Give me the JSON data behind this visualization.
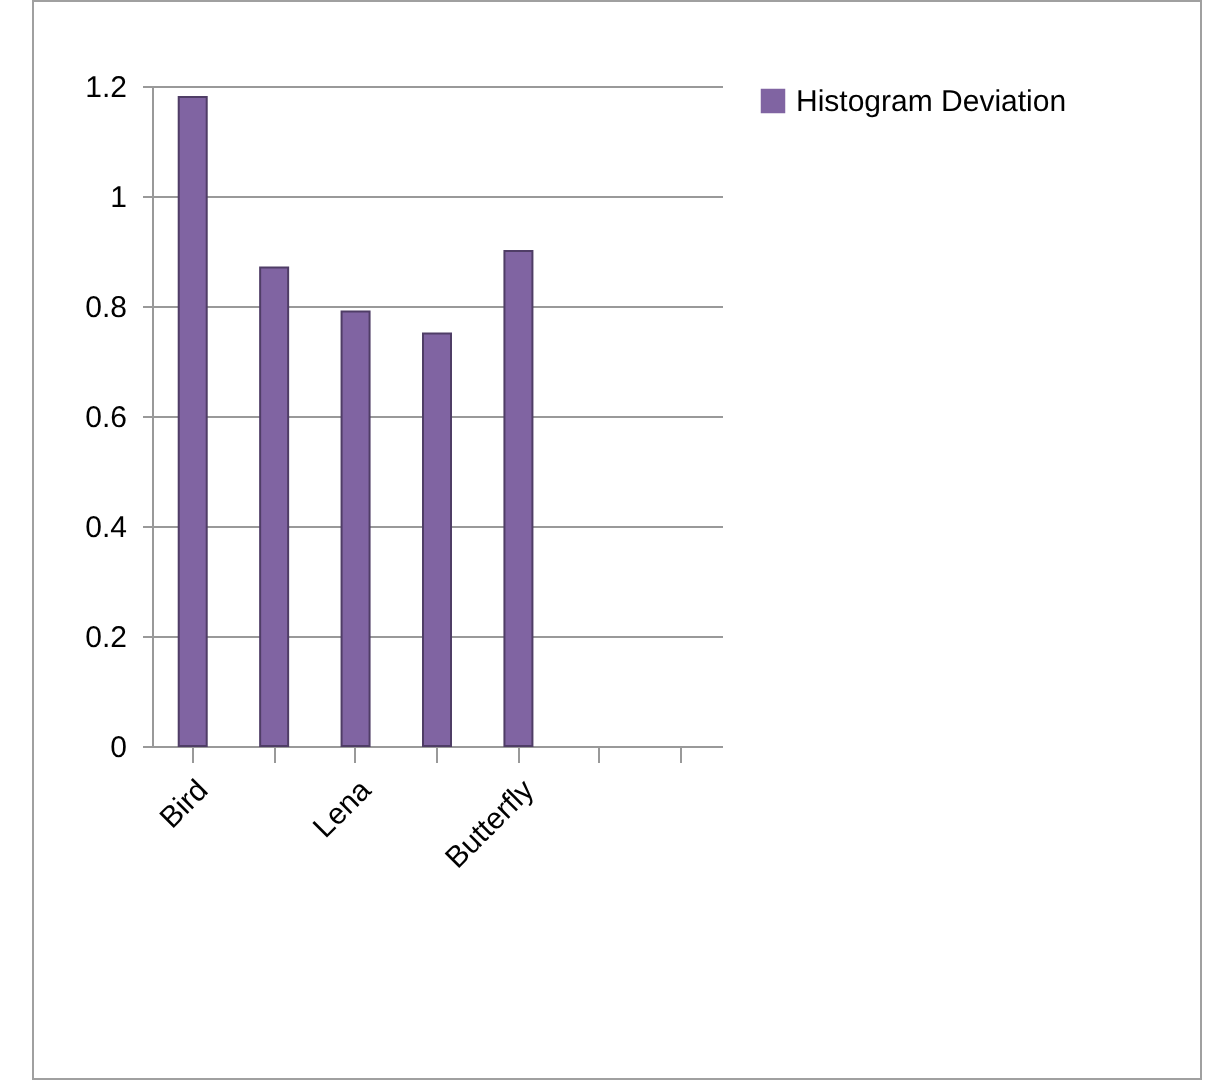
{
  "chart_data": {
    "type": "bar",
    "categories": [
      "Bird",
      null,
      "Lena",
      null,
      "Butterfly",
      null,
      null
    ],
    "series": [
      {
        "name": "Histogram Deviation",
        "color": "#8064a2",
        "values": [
          1.18,
          0.87,
          0.79,
          0.75,
          0.9,
          null,
          null
        ]
      }
    ],
    "ylim": [
      0,
      1.2
    ],
    "yticks": [
      0,
      0.2,
      0.4,
      0.6,
      0.8,
      1,
      1.2
    ],
    "grid": "y",
    "legend": "right"
  }
}
